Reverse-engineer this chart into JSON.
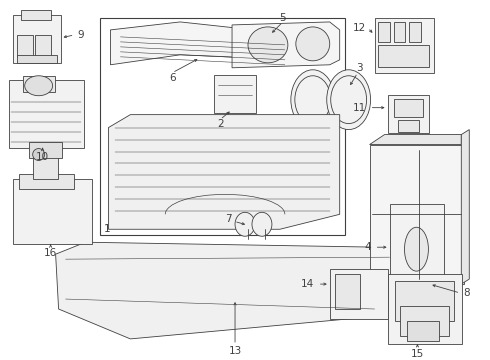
{
  "bg_color": "#ffffff",
  "line_color": "#404040",
  "lw": 0.6,
  "fig_width": 4.9,
  "fig_height": 3.6,
  "dpi": 100,
  "label_fontsize": 7.5,
  "arrow_lw": 0.6,
  "arrow_ms": 4
}
